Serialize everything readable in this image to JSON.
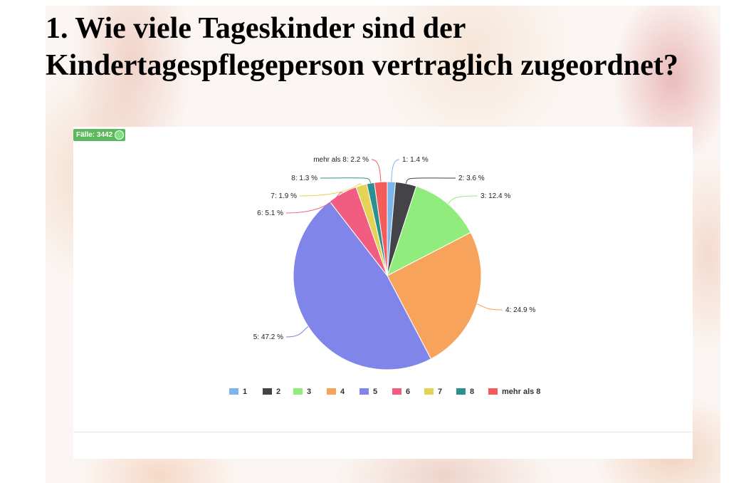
{
  "slide": {
    "title": "1. Wie viele Tageskinder sind der Kindertagespflegeperson vertraglich zugeordnet?"
  },
  "badge": {
    "label": "Fälle: 3442"
  },
  "chart_data": {
    "type": "pie",
    "title": "",
    "categories": [
      "1",
      "2",
      "3",
      "4",
      "5",
      "6",
      "7",
      "8",
      "mehr als 8"
    ],
    "values": [
      1.4,
      3.6,
      12.4,
      24.9,
      47.2,
      5.1,
      1.9,
      1.3,
      2.2
    ],
    "unit": "%",
    "data_labels": [
      "1: 1.4 %",
      "2: 3.6 %",
      "3: 12.4 %",
      "4: 24.9 %",
      "5: 47.2 %",
      "6: 5.1 %",
      "7: 1.9 %",
      "8: 1.3 %",
      "mehr als 8: 2.2 %"
    ],
    "colors": [
      "#7cb5ec",
      "#434348",
      "#90ed7d",
      "#f7a35c",
      "#8085e9",
      "#f15c80",
      "#e4d354",
      "#2b908f",
      "#f45b5b"
    ],
    "legend": {
      "position": "bottom",
      "entries": [
        "1",
        "2",
        "3",
        "4",
        "5",
        "6",
        "7",
        "8",
        "mehr als 8"
      ]
    }
  }
}
